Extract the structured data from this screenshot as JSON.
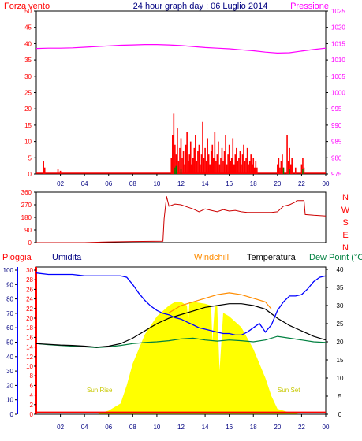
{
  "header": {
    "left_label": "Forza vento",
    "title": "24 hour graph day : 06 Luglio 2014",
    "right_label": "Pressione"
  },
  "colors": {
    "wind": "#ff0000",
    "pressure": "#ff00ff",
    "direction": "#cc0000",
    "rain": "#ff0000",
    "humidity": "#0000ff",
    "windchill": "#ff8c00",
    "temperature": "#000000",
    "dewpoint": "#008040",
    "solar": "#ffff00",
    "sun_text": "#c8c800",
    "title": "#000080",
    "axis_left_humidity": "#000080"
  },
  "chart_data": [
    {
      "type": "bar",
      "name": "wind-pressure",
      "x_ticks": [
        "02",
        "04",
        "06",
        "08",
        "10",
        "12",
        "14",
        "16",
        "18",
        "20",
        "22",
        "00"
      ],
      "x_range": [
        0,
        24
      ],
      "left_axis": {
        "label": "Forza vento",
        "ticks": [
          0,
          5,
          10,
          15,
          20,
          25,
          30,
          35,
          40,
          45,
          50
        ],
        "range": [
          0,
          50
        ]
      },
      "right_axis": {
        "label": "Pressione",
        "ticks": [
          975,
          980,
          985,
          990,
          995,
          1000,
          1005,
          1010,
          1015,
          1020,
          1025
        ],
        "range": [
          975,
          1025
        ]
      },
      "wind_gust_spikes": [
        [
          0.6,
          4
        ],
        [
          0.7,
          2
        ],
        [
          1.8,
          1.5
        ],
        [
          2.0,
          1
        ],
        [
          11.2,
          5
        ],
        [
          11.3,
          12
        ],
        [
          11.4,
          18.5
        ],
        [
          11.5,
          9
        ],
        [
          11.6,
          6
        ],
        [
          11.7,
          14
        ],
        [
          11.8,
          4
        ],
        [
          11.9,
          8
        ],
        [
          12.0,
          11
        ],
        [
          12.1,
          5
        ],
        [
          12.2,
          7
        ],
        [
          12.3,
          3
        ],
        [
          12.4,
          9
        ],
        [
          12.5,
          13
        ],
        [
          12.6,
          4
        ],
        [
          12.7,
          6
        ],
        [
          12.8,
          10
        ],
        [
          12.9,
          3
        ],
        [
          13.0,
          5
        ],
        [
          13.1,
          8
        ],
        [
          13.2,
          12
        ],
        [
          13.3,
          4
        ],
        [
          13.4,
          7
        ],
        [
          13.5,
          9
        ],
        [
          13.6,
          3
        ],
        [
          13.7,
          6
        ],
        [
          13.8,
          16
        ],
        [
          13.9,
          5
        ],
        [
          14.0,
          8
        ],
        [
          14.1,
          4
        ],
        [
          14.2,
          11
        ],
        [
          14.3,
          6
        ],
        [
          14.4,
          3
        ],
        [
          14.5,
          7
        ],
        [
          14.6,
          9
        ],
        [
          14.7,
          5
        ],
        [
          14.8,
          13
        ],
        [
          14.9,
          4
        ],
        [
          15.0,
          6
        ],
        [
          15.1,
          10
        ],
        [
          15.2,
          3
        ],
        [
          15.3,
          5
        ],
        [
          15.4,
          8
        ],
        [
          15.5,
          4
        ],
        [
          15.6,
          7
        ],
        [
          15.7,
          12
        ],
        [
          15.8,
          3
        ],
        [
          15.9,
          6
        ],
        [
          16.0,
          9
        ],
        [
          16.1,
          4
        ],
        [
          16.2,
          5
        ],
        [
          16.3,
          11
        ],
        [
          16.4,
          3
        ],
        [
          16.5,
          6
        ],
        [
          16.6,
          8
        ],
        [
          16.7,
          4
        ],
        [
          16.8,
          5
        ],
        [
          16.9,
          7
        ],
        [
          17.0,
          3
        ],
        [
          17.1,
          6
        ],
        [
          17.2,
          9
        ],
        [
          17.3,
          4
        ],
        [
          17.4,
          5
        ],
        [
          17.5,
          8
        ],
        [
          17.6,
          3
        ],
        [
          17.7,
          4
        ],
        [
          17.8,
          6
        ],
        [
          17.9,
          3
        ],
        [
          18.0,
          5
        ],
        [
          18.1,
          2
        ],
        [
          18.2,
          4
        ],
        [
          18.3,
          2
        ],
        [
          20.0,
          3
        ],
        [
          20.1,
          5
        ],
        [
          20.2,
          2
        ],
        [
          20.3,
          4
        ],
        [
          20.4,
          6
        ],
        [
          20.5,
          2
        ],
        [
          20.8,
          12
        ],
        [
          20.9,
          4
        ],
        [
          21.0,
          8
        ],
        [
          21.1,
          3
        ],
        [
          21.2,
          5
        ],
        [
          21.5,
          2
        ],
        [
          22.0,
          3
        ],
        [
          22.1,
          5
        ],
        [
          22.2,
          2
        ]
      ],
      "wind_avg_spikes": [
        [
          11.5,
          2
        ],
        [
          11.6,
          2.5
        ],
        [
          12.0,
          1.5
        ],
        [
          20.5,
          2
        ],
        [
          21.0,
          1.5
        ],
        [
          22.1,
          1.5
        ]
      ],
      "pressure_series": [
        [
          0,
          1013.5
        ],
        [
          1,
          1013.6
        ],
        [
          2,
          1013.6
        ],
        [
          3,
          1013.7
        ],
        [
          4,
          1013.9
        ],
        [
          5,
          1014.1
        ],
        [
          6,
          1014.3
        ],
        [
          7,
          1014.5
        ],
        [
          8,
          1014.6
        ],
        [
          9,
          1014.7
        ],
        [
          10,
          1014.7
        ],
        [
          11,
          1014.6
        ],
        [
          12,
          1014.4
        ],
        [
          13,
          1014.1
        ],
        [
          14,
          1013.8
        ],
        [
          15,
          1013.6
        ],
        [
          16,
          1013.4
        ],
        [
          17,
          1013.1
        ],
        [
          18,
          1012.8
        ],
        [
          19,
          1012.4
        ],
        [
          20,
          1012.1
        ],
        [
          21,
          1012.2
        ],
        [
          22,
          1012.7
        ],
        [
          23,
          1013.2
        ],
        [
          24,
          1013.6
        ]
      ]
    },
    {
      "type": "line",
      "name": "wind-direction",
      "x_range": [
        0,
        24
      ],
      "left_axis": {
        "ticks": [
          0,
          90,
          180,
          270,
          360
        ],
        "range": [
          0,
          360
        ]
      },
      "right_axis": {
        "ticks": [
          "N",
          "W",
          "S",
          "E",
          "N"
        ]
      },
      "series": [
        [
          0,
          0
        ],
        [
          4,
          0
        ],
        [
          6,
          5
        ],
        [
          8,
          8
        ],
        [
          10.5,
          10
        ],
        [
          10.6,
          170
        ],
        [
          10.8,
          330
        ],
        [
          11,
          260
        ],
        [
          11.5,
          275
        ],
        [
          12,
          270
        ],
        [
          12.5,
          255
        ],
        [
          13,
          240
        ],
        [
          13.5,
          220
        ],
        [
          14,
          240
        ],
        [
          14.5,
          230
        ],
        [
          15,
          220
        ],
        [
          15.5,
          235
        ],
        [
          16,
          225
        ],
        [
          16.5,
          230
        ],
        [
          17,
          220
        ],
        [
          17.5,
          215
        ],
        [
          18,
          215
        ],
        [
          18.5,
          215
        ],
        [
          19,
          215
        ],
        [
          19.5,
          215
        ],
        [
          20,
          220
        ],
        [
          20.5,
          260
        ],
        [
          21,
          270
        ],
        [
          21.5,
          290
        ],
        [
          21.6,
          300
        ],
        [
          22,
          300
        ],
        [
          22.2,
          300
        ],
        [
          22.3,
          200
        ],
        [
          23,
          195
        ],
        [
          24,
          190
        ]
      ]
    },
    {
      "type": "line",
      "name": "weather",
      "x_range": [
        0,
        24
      ],
      "x_ticks": [
        "02",
        "04",
        "06",
        "08",
        "10",
        "12",
        "14",
        "16",
        "18",
        "20",
        "22",
        "00"
      ],
      "legend": [
        "Pioggia",
        "Umidita",
        "Windchill",
        "Temperatura",
        "Dew Point (°C"
      ],
      "left_axis_humidity": {
        "label": "Umidita",
        "ticks": [
          0,
          10,
          20,
          30,
          40,
          50,
          60,
          70,
          80,
          90,
          100
        ],
        "range": [
          0,
          100
        ]
      },
      "left_axis_rain": {
        "label": "Pioggia",
        "ticks": [
          0,
          2,
          4,
          6,
          8,
          10,
          12,
          14,
          16,
          18,
          20,
          22,
          24,
          26,
          28,
          30
        ],
        "range": [
          0,
          30
        ]
      },
      "right_axis_temp": {
        "ticks": [
          0,
          5,
          10,
          15,
          20,
          25,
          30,
          35,
          40
        ],
        "range": [
          0,
          40
        ]
      },
      "annotations": [
        {
          "text": "Sun Rise",
          "x": 5.5
        },
        {
          "text": "Sun Set",
          "x": 20.5
        }
      ],
      "humidity_series": [
        [
          0,
          98
        ],
        [
          1,
          97
        ],
        [
          2,
          97
        ],
        [
          3,
          97
        ],
        [
          4,
          96
        ],
        [
          5,
          96
        ],
        [
          6,
          96
        ],
        [
          7,
          96
        ],
        [
          7.5,
          95
        ],
        [
          8,
          90
        ],
        [
          8.5,
          84
        ],
        [
          9,
          79
        ],
        [
          9.5,
          75
        ],
        [
          10,
          72
        ],
        [
          10.5,
          70
        ],
        [
          11,
          69
        ],
        [
          11.5,
          67
        ],
        [
          12,
          66
        ],
        [
          12.5,
          64
        ],
        [
          13,
          62
        ],
        [
          13.5,
          60
        ],
        [
          14,
          59
        ],
        [
          14.5,
          58
        ],
        [
          15,
          57
        ],
        [
          15.5,
          56
        ],
        [
          16,
          56
        ],
        [
          16.5,
          55
        ],
        [
          17,
          55
        ],
        [
          17.5,
          57
        ],
        [
          18,
          60
        ],
        [
          18.5,
          63
        ],
        [
          19,
          57
        ],
        [
          19.5,
          62
        ],
        [
          20,
          72
        ],
        [
          20.5,
          78
        ],
        [
          21,
          82
        ],
        [
          21.5,
          82
        ],
        [
          22,
          83
        ],
        [
          22.5,
          87
        ],
        [
          23,
          92
        ],
        [
          23.5,
          95
        ],
        [
          24,
          96
        ]
      ],
      "windchill_series": [
        [
          11,
          28
        ],
        [
          12,
          30
        ],
        [
          13,
          31
        ],
        [
          14,
          32
        ],
        [
          15,
          33
        ],
        [
          16,
          33.5
        ],
        [
          17,
          33
        ],
        [
          18,
          32
        ],
        [
          19,
          31
        ],
        [
          19.5,
          29
        ]
      ],
      "temperature_series": [
        [
          0,
          19.5
        ],
        [
          1,
          19.3
        ],
        [
          2,
          19.1
        ],
        [
          3,
          19
        ],
        [
          4,
          18.8
        ],
        [
          5,
          18.5
        ],
        [
          6,
          18.8
        ],
        [
          7,
          19.5
        ],
        [
          8,
          21
        ],
        [
          9,
          23
        ],
        [
          10,
          25
        ],
        [
          11,
          26.5
        ],
        [
          12,
          27.5
        ],
        [
          13,
          28.5
        ],
        [
          14,
          29.5
        ],
        [
          15,
          30
        ],
        [
          16,
          30.5
        ],
        [
          17,
          30.5
        ],
        [
          18,
          30
        ],
        [
          19,
          29
        ],
        [
          20,
          26.5
        ],
        [
          21,
          24.5
        ],
        [
          22,
          23
        ],
        [
          23,
          21.5
        ],
        [
          24,
          20.5
        ]
      ],
      "dewpoint_series": [
        [
          0,
          19.5
        ],
        [
          1,
          19.2
        ],
        [
          2,
          19
        ],
        [
          3,
          18.8
        ],
        [
          4,
          18.6
        ],
        [
          5,
          18.4
        ],
        [
          6,
          18.6
        ],
        [
          7,
          19
        ],
        [
          8,
          19.5
        ],
        [
          9,
          19.8
        ],
        [
          10,
          20
        ],
        [
          11,
          20.3
        ],
        [
          12,
          20.8
        ],
        [
          13,
          21
        ],
        [
          14,
          20.5
        ],
        [
          15,
          20.2
        ],
        [
          16,
          20.5
        ],
        [
          17,
          20.3
        ],
        [
          18,
          20
        ],
        [
          19,
          20.5
        ],
        [
          20,
          21.5
        ],
        [
          21,
          21
        ],
        [
          22,
          20.5
        ],
        [
          23,
          20
        ],
        [
          24,
          19.8
        ]
      ],
      "solar_series": [
        [
          0,
          0
        ],
        [
          5,
          0
        ],
        [
          6,
          1
        ],
        [
          7,
          3
        ],
        [
          7.5,
          8
        ],
        [
          8,
          14
        ],
        [
          9,
          22
        ],
        [
          10,
          27
        ],
        [
          11,
          30
        ],
        [
          11.5,
          31
        ],
        [
          12,
          31
        ],
        [
          12.5,
          30
        ],
        [
          12.6,
          25
        ],
        [
          12.7,
          31
        ],
        [
          13,
          31
        ],
        [
          14,
          30.5
        ],
        [
          14.5,
          30
        ],
        [
          14.6,
          20
        ],
        [
          14.8,
          30
        ],
        [
          15,
          30
        ],
        [
          15.2,
          12
        ],
        [
          15.5,
          28
        ],
        [
          16,
          27
        ],
        [
          17,
          24
        ],
        [
          18,
          18
        ],
        [
          19,
          10
        ],
        [
          19.5,
          5
        ],
        [
          20,
          1.5
        ],
        [
          21,
          0.5
        ],
        [
          22,
          0
        ],
        [
          24,
          0
        ]
      ],
      "rain_series": [
        [
          0,
          0.4
        ],
        [
          24,
          0.4
        ]
      ]
    }
  ]
}
